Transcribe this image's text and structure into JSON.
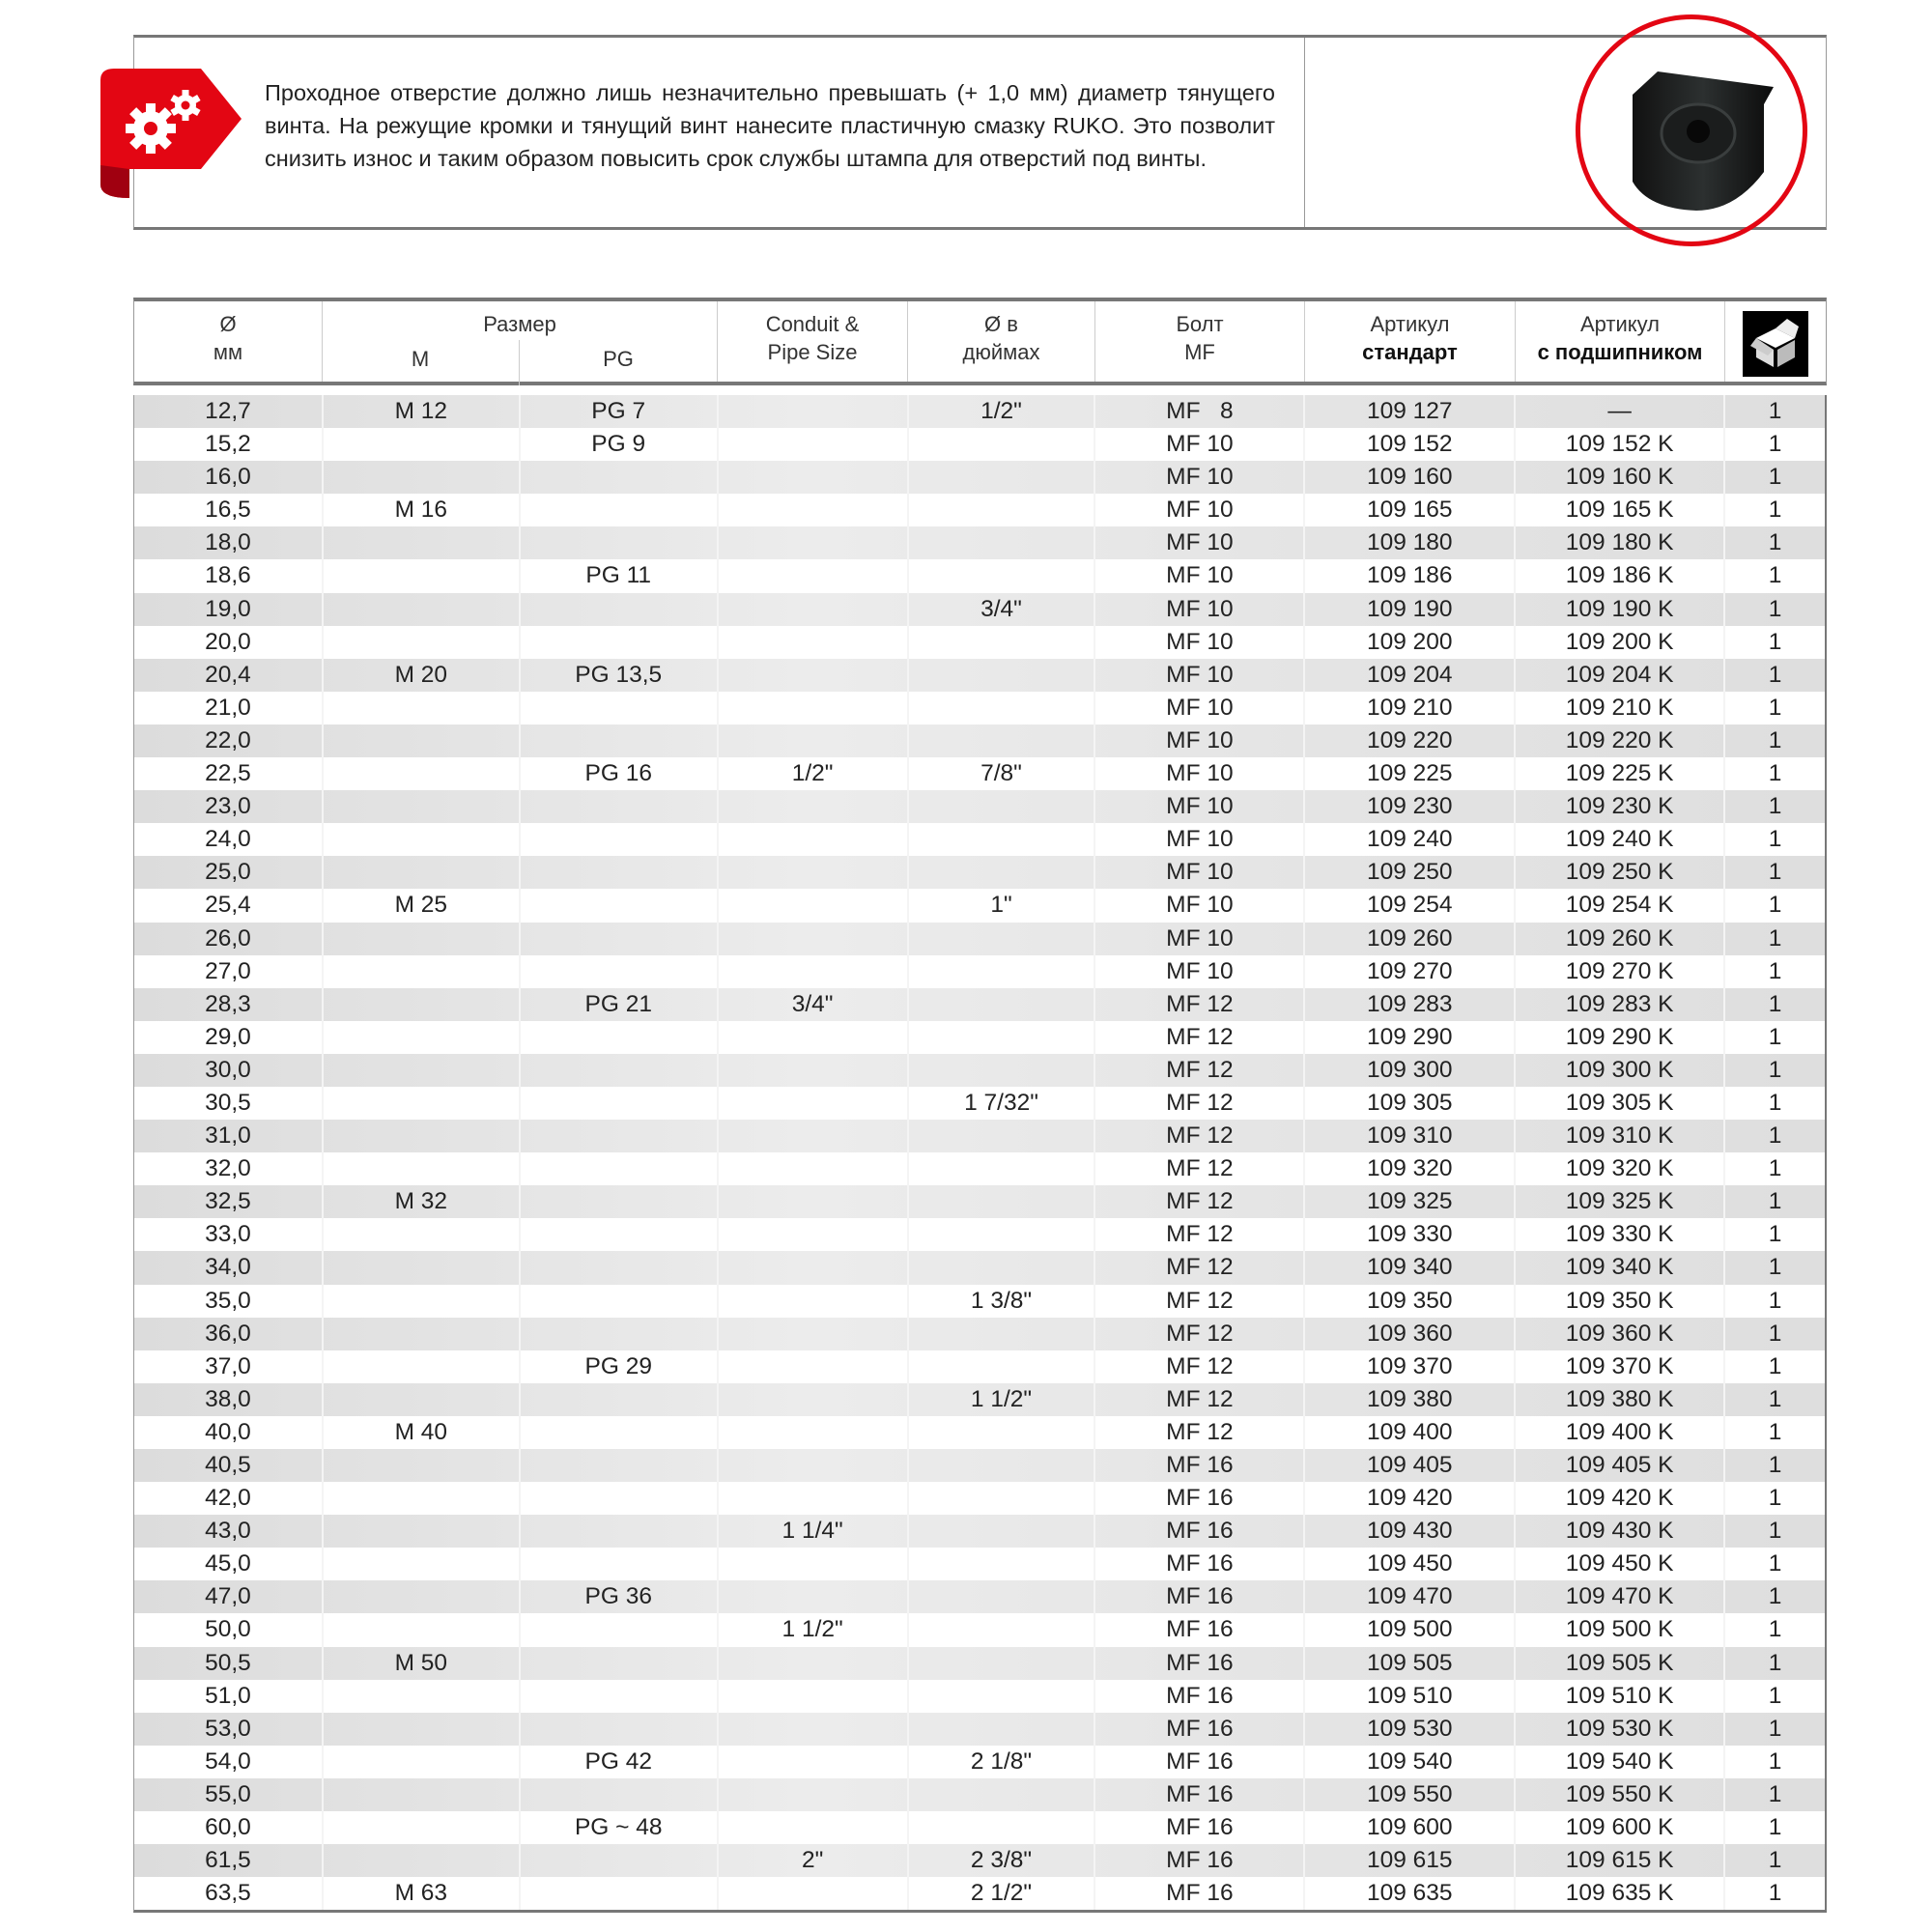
{
  "note": {
    "text": "Проходное отверстие должно лишь незначительно превышать (+ 1,0 мм) диаметр тянущего винта. На режущие кромки и тянущий винт нанесите пластичную смазку RUKO. Это позволит снизить износ и таким образом повысить срок службы штампа для отверстий под винты.",
    "icon": "gears-tag-icon",
    "accent_color": "#e30613"
  },
  "product_image": "punch-die-photo",
  "header": {
    "diameter_top": "Ø",
    "diameter_unit": "мм",
    "size": "Размер",
    "size_m": "M",
    "size_pg": "PG",
    "conduit_1": "Conduit &",
    "conduit_2": "Pipe Size",
    "inch_1": "Ø в",
    "inch_2": "дюймах",
    "bolt_1": "Болт",
    "bolt_2": "MF",
    "art_std_1": "Артикул",
    "art_std_2": "стандарт",
    "art_bear_1": "Артикул",
    "art_bear_2": "с подшипником",
    "pack_icon": "box-icon"
  },
  "rows": [
    [
      "12,7",
      "M 12",
      "PG 7",
      "",
      "1/2\"",
      "MF   8",
      "109 127",
      "—",
      "1"
    ],
    [
      "15,2",
      "",
      "PG 9",
      "",
      "",
      "MF 10",
      "109 152",
      "109 152 K",
      "1"
    ],
    [
      "16,0",
      "",
      "",
      "",
      "",
      "MF 10",
      "109 160",
      "109 160 K",
      "1"
    ],
    [
      "16,5",
      "M 16",
      "",
      "",
      "",
      "MF 10",
      "109 165",
      "109 165 K",
      "1"
    ],
    [
      "18,0",
      "",
      "",
      "",
      "",
      "MF 10",
      "109 180",
      "109 180 K",
      "1"
    ],
    [
      "18,6",
      "",
      "PG 11",
      "",
      "",
      "MF 10",
      "109 186",
      "109 186 K",
      "1"
    ],
    [
      "19,0",
      "",
      "",
      "",
      "3/4\"",
      "MF 10",
      "109 190",
      "109 190 K",
      "1"
    ],
    [
      "20,0",
      "",
      "",
      "",
      "",
      "MF 10",
      "109 200",
      "109 200 K",
      "1"
    ],
    [
      "20,4",
      "M 20",
      "PG 13,5",
      "",
      "",
      "MF 10",
      "109 204",
      "109 204 K",
      "1"
    ],
    [
      "21,0",
      "",
      "",
      "",
      "",
      "MF 10",
      "109 210",
      "109 210 K",
      "1"
    ],
    [
      "22,0",
      "",
      "",
      "",
      "",
      "MF 10",
      "109 220",
      "109 220 K",
      "1"
    ],
    [
      "22,5",
      "",
      "PG 16",
      "1/2\"",
      "7/8\"",
      "MF 10",
      "109 225",
      "109 225 K",
      "1"
    ],
    [
      "23,0",
      "",
      "",
      "",
      "",
      "MF 10",
      "109 230",
      "109 230 K",
      "1"
    ],
    [
      "24,0",
      "",
      "",
      "",
      "",
      "MF 10",
      "109 240",
      "109 240 K",
      "1"
    ],
    [
      "25,0",
      "",
      "",
      "",
      "",
      "MF 10",
      "109 250",
      "109 250 K",
      "1"
    ],
    [
      "25,4",
      "M 25",
      "",
      "",
      "1\"",
      "MF 10",
      "109 254",
      "109 254 K",
      "1"
    ],
    [
      "26,0",
      "",
      "",
      "",
      "",
      "MF 10",
      "109 260",
      "109 260 K",
      "1"
    ],
    [
      "27,0",
      "",
      "",
      "",
      "",
      "MF 10",
      "109 270",
      "109 270 K",
      "1"
    ],
    [
      "28,3",
      "",
      "PG 21",
      "3/4\"",
      "",
      "MF 12",
      "109 283",
      "109 283 K",
      "1"
    ],
    [
      "29,0",
      "",
      "",
      "",
      "",
      "MF 12",
      "109 290",
      "109 290 K",
      "1"
    ],
    [
      "30,0",
      "",
      "",
      "",
      "",
      "MF 12",
      "109 300",
      "109 300 K",
      "1"
    ],
    [
      "30,5",
      "",
      "",
      "",
      "1 7/32\"",
      "MF 12",
      "109 305",
      "109 305 K",
      "1"
    ],
    [
      "31,0",
      "",
      "",
      "",
      "",
      "MF 12",
      "109 310",
      "109 310 K",
      "1"
    ],
    [
      "32,0",
      "",
      "",
      "",
      "",
      "MF 12",
      "109 320",
      "109 320 K",
      "1"
    ],
    [
      "32,5",
      "M 32",
      "",
      "",
      "",
      "MF 12",
      "109 325",
      "109 325 K",
      "1"
    ],
    [
      "33,0",
      "",
      "",
      "",
      "",
      "MF 12",
      "109 330",
      "109 330 K",
      "1"
    ],
    [
      "34,0",
      "",
      "",
      "",
      "",
      "MF 12",
      "109 340",
      "109 340 K",
      "1"
    ],
    [
      "35,0",
      "",
      "",
      "",
      "1 3/8\"",
      "MF 12",
      "109 350",
      "109 350 K",
      "1"
    ],
    [
      "36,0",
      "",
      "",
      "",
      "",
      "MF 12",
      "109 360",
      "109 360 K",
      "1"
    ],
    [
      "37,0",
      "",
      "PG 29",
      "",
      "",
      "MF 12",
      "109 370",
      "109 370 K",
      "1"
    ],
    [
      "38,0",
      "",
      "",
      "",
      "1 1/2\"",
      "MF 12",
      "109 380",
      "109 380 K",
      "1"
    ],
    [
      "40,0",
      "M 40",
      "",
      "",
      "",
      "MF 12",
      "109 400",
      "109 400 K",
      "1"
    ],
    [
      "40,5",
      "",
      "",
      "",
      "",
      "MF 16",
      "109 405",
      "109 405 K",
      "1"
    ],
    [
      "42,0",
      "",
      "",
      "",
      "",
      "MF 16",
      "109 420",
      "109 420 K",
      "1"
    ],
    [
      "43,0",
      "",
      "",
      "1 1/4\"",
      "",
      "MF 16",
      "109 430",
      "109 430 K",
      "1"
    ],
    [
      "45,0",
      "",
      "",
      "",
      "",
      "MF 16",
      "109 450",
      "109 450 K",
      "1"
    ],
    [
      "47,0",
      "",
      "PG 36",
      "",
      "",
      "MF 16",
      "109 470",
      "109 470 K",
      "1"
    ],
    [
      "50,0",
      "",
      "",
      "1 1/2\"",
      "",
      "MF 16",
      "109 500",
      "109 500 K",
      "1"
    ],
    [
      "50,5",
      "M 50",
      "",
      "",
      "",
      "MF 16",
      "109 505",
      "109 505 K",
      "1"
    ],
    [
      "51,0",
      "",
      "",
      "",
      "",
      "MF 16",
      "109 510",
      "109 510 K",
      "1"
    ],
    [
      "53,0",
      "",
      "",
      "",
      "",
      "MF 16",
      "109 530",
      "109 530 K",
      "1"
    ],
    [
      "54,0",
      "",
      "PG 42",
      "",
      "2 1/8\"",
      "MF 16",
      "109 540",
      "109 540 K",
      "1"
    ],
    [
      "55,0",
      "",
      "",
      "",
      "",
      "MF 16",
      "109 550",
      "109 550 K",
      "1"
    ],
    [
      "60,0",
      "",
      "PG ~ 48",
      "",
      "",
      "MF 16",
      "109 600",
      "109 600 K",
      "1"
    ],
    [
      "61,5",
      "",
      "",
      "2\"",
      "2 3/8\"",
      "MF 16",
      "109 615",
      "109 615 K",
      "1"
    ],
    [
      "63,5",
      "M 63",
      "",
      "",
      "2 1/2\"",
      "MF 16",
      "109 635",
      "109 635 K",
      "1"
    ]
  ]
}
